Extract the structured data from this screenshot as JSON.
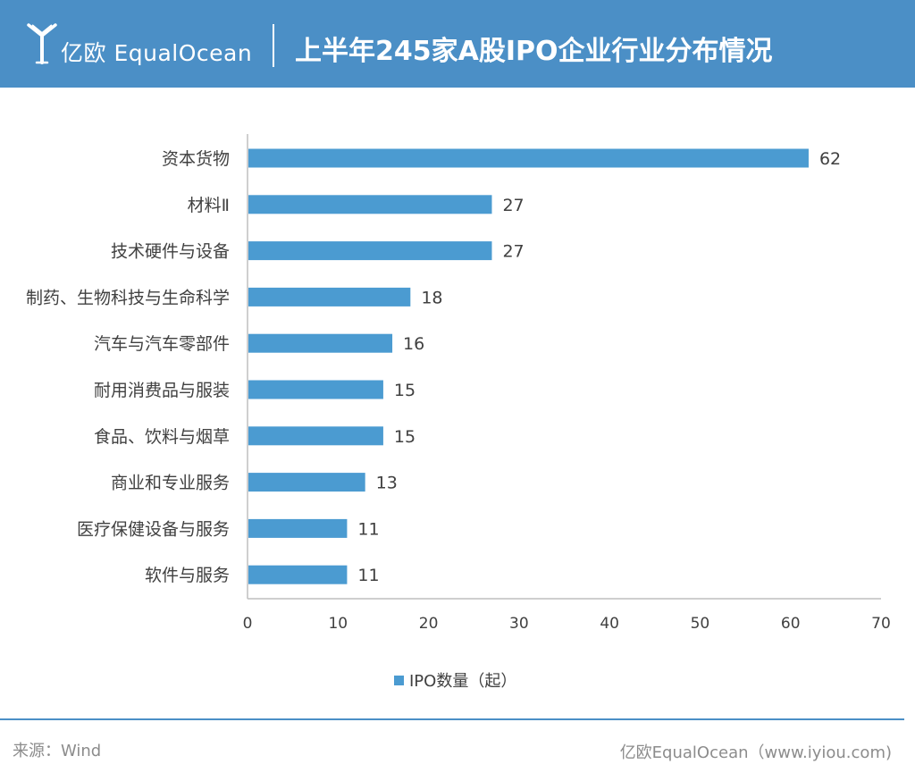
{
  "header": {
    "brand": "亿欧 EqualOcean",
    "title": "上半年245家A股IPO企业行业分布情况"
  },
  "colors": {
    "header_bg": "#4b8fc6",
    "bar": "#4b9bd1",
    "axis": "#bfbfbf",
    "text": "#404040",
    "footer_text": "#8c8c8c"
  },
  "chart_data": {
    "type": "bar",
    "orientation": "horizontal",
    "categories": [
      "资本货物",
      "材料Ⅱ",
      "技术硬件与设备",
      "制药、生物科技与生命科学",
      "汽车与汽车零部件",
      "耐用消费品与服装",
      "食品、饮料与烟草",
      "商业和专业服务",
      "医疗保健设备与服务",
      "软件与服务"
    ],
    "series": [
      {
        "name": "IPO数量（起）",
        "values": [
          62,
          27,
          27,
          18,
          16,
          15,
          15,
          13,
          11,
          11
        ]
      }
    ],
    "xlim": [
      0,
      70
    ],
    "xticks": [
      0,
      10,
      20,
      30,
      40,
      50,
      60,
      70
    ],
    "data_labels": true,
    "grid": false,
    "legend_position": "bottom-center"
  },
  "footer": {
    "source": "来源：Wind",
    "credit": "亿欧EqualOcean（www.iyiou.com)"
  }
}
